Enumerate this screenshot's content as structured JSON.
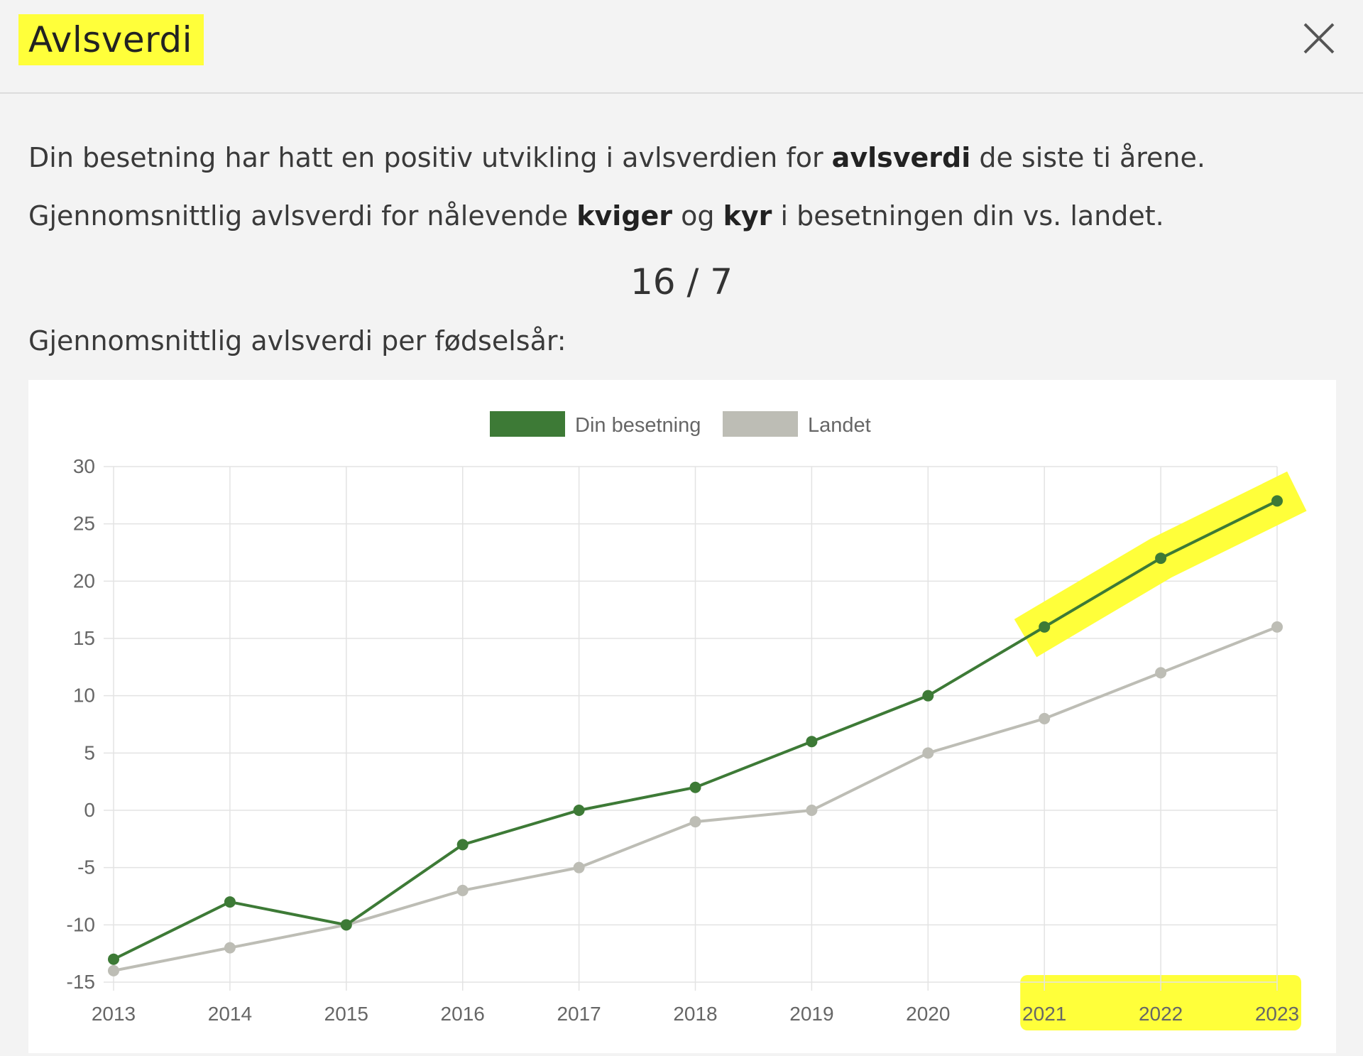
{
  "dialog": {
    "title": "Avlsverdi",
    "close_icon": "close-icon"
  },
  "text": {
    "line1_before": "Din besetning har hatt en positiv utvikling i avlsverdien for ",
    "line1_bold": "avlsverdi",
    "line1_after": " de siste ti årene.",
    "line2_before": "Gjennomsnittlig avlsverdi for nålevende ",
    "line2_bold1": "kviger",
    "line2_mid": " og ",
    "line2_bold2": "kyr",
    "line2_after": " i besetningen din vs. landet.",
    "score": "16 / 7",
    "caption": "Gjennomsnittlig avlsverdi per fødselsår:"
  },
  "colors": {
    "highlight": "#ffff3a",
    "din_besetning": "#3d7a36",
    "landet": "#bdbdb5"
  },
  "chart_data": {
    "type": "line",
    "x": [
      "2013",
      "2014",
      "2015",
      "2016",
      "2017",
      "2018",
      "2019",
      "2020",
      "2021",
      "2022",
      "2023"
    ],
    "series": [
      {
        "name": "Din besetning",
        "color": "#3d7a36",
        "values": [
          -13,
          -8,
          -10,
          -3,
          0,
          2,
          6,
          10,
          16,
          22,
          27
        ]
      },
      {
        "name": "Landet",
        "color": "#bdbdb5",
        "values": [
          -14,
          -12,
          -10,
          -7,
          -5,
          -1,
          0,
          5,
          8,
          12,
          16
        ]
      }
    ],
    "yticks": [
      30,
      25,
      20,
      15,
      10,
      5,
      0,
      -5,
      -10,
      -15
    ],
    "ylim": [
      -15,
      30
    ],
    "legend_position": "top",
    "grid": true,
    "highlighted_x": [
      "2021",
      "2022",
      "2023"
    ]
  }
}
